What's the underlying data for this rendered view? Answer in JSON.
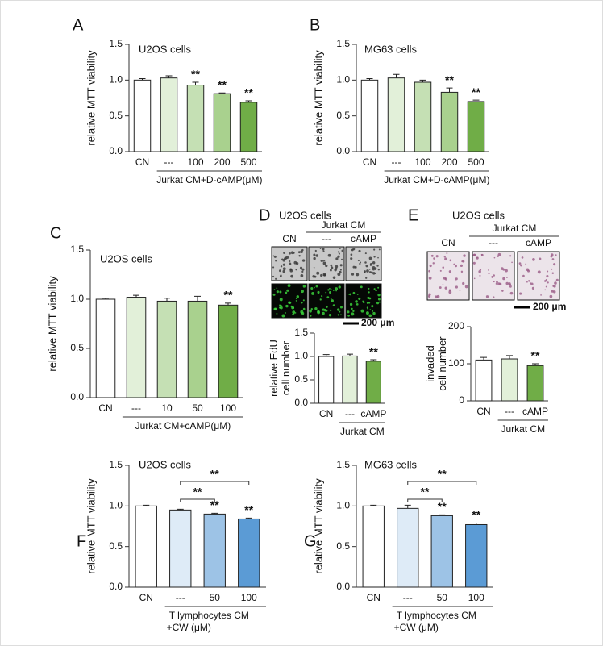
{
  "chart_data": [
    {
      "type": "bar",
      "panel": "A",
      "title": "U2OS cells",
      "y_label": [
        "relative MTT viability"
      ],
      "categories": [
        "CN",
        "---",
        "100",
        "200",
        "500"
      ],
      "values": [
        1.0,
        1.03,
        0.93,
        0.81,
        0.69
      ],
      "errors": [
        0.02,
        0.03,
        0.04,
        0.01,
        0.02
      ],
      "colors": [
        "#ffffff",
        "#e2f0d9",
        "#c5e0b4",
        "#a9d18e",
        "#70ad47"
      ],
      "significance": [
        null,
        null,
        "**",
        "**",
        "**"
      ],
      "group_label": [
        "Jurkat CM+D-cAMP(μM)"
      ],
      "ylim": [
        0,
        1.5
      ],
      "yticks": [
        {
          "value": 0,
          "label": "0.0"
        },
        {
          "value": 0.5,
          "label": "0.5"
        },
        {
          "value": 1,
          "label": "1.0"
        },
        {
          "value": 1.5,
          "label": "1.5"
        }
      ]
    },
    {
      "type": "bar",
      "panel": "B",
      "title": "MG63 cells",
      "y_label": [
        "relative MTT viability"
      ],
      "categories": [
        "CN",
        "---",
        "100",
        "200",
        "500"
      ],
      "values": [
        1.0,
        1.03,
        0.97,
        0.83,
        0.7
      ],
      "errors": [
        0.02,
        0.05,
        0.03,
        0.06,
        0.02
      ],
      "colors": [
        "#ffffff",
        "#e2f0d9",
        "#c5e0b4",
        "#a9d18e",
        "#70ad47"
      ],
      "significance": [
        null,
        null,
        null,
        "**",
        "**"
      ],
      "group_label": [
        "Jurkat CM+D-cAMP(μM)"
      ],
      "ylim": [
        0,
        1.5
      ],
      "yticks": [
        {
          "value": 0,
          "label": "0.0"
        },
        {
          "value": 0.5,
          "label": "0.5"
        },
        {
          "value": 1,
          "label": "1.0"
        },
        {
          "value": 1.5,
          "label": "1.5"
        }
      ]
    },
    {
      "type": "bar",
      "panel": "C",
      "title": "U2OS cells",
      "y_label": [
        "relative MTT viability"
      ],
      "categories": [
        "CN",
        "---",
        "10",
        "50",
        "100"
      ],
      "values": [
        1.0,
        1.02,
        0.98,
        0.98,
        0.94
      ],
      "errors": [
        0.01,
        0.02,
        0.03,
        0.05,
        0.02
      ],
      "colors": [
        "#ffffff",
        "#e2f0d9",
        "#c5e0b4",
        "#a9d18e",
        "#70ad47"
      ],
      "significance": [
        null,
        null,
        null,
        null,
        "**"
      ],
      "group_label": [
        "Jurkat CM+cAMP(μM)"
      ],
      "ylim": [
        0,
        1.5
      ],
      "yticks": [
        {
          "value": 0,
          "label": "0.0"
        },
        {
          "value": 0.5,
          "label": "0.5"
        },
        {
          "value": 1,
          "label": "1.0"
        },
        {
          "value": 1.5,
          "label": "1.5"
        }
      ]
    },
    {
      "type": "bar",
      "panel": "D",
      "title": "U2OS cells",
      "y_label": [
        "relative EdU",
        "cell number"
      ],
      "image_header": "Jurkat CM",
      "image_columns": [
        "CN",
        "---",
        "cAMP"
      ],
      "scale_bar": "200 μm",
      "categories": [
        "CN",
        "---",
        "cAMP"
      ],
      "values": [
        1.0,
        1.01,
        0.9
      ],
      "errors": [
        0.04,
        0.04,
        0.03
      ],
      "colors": [
        "#ffffff",
        "#e2f0d9",
        "#70ad47"
      ],
      "significance": [
        null,
        null,
        "**"
      ],
      "group_label": [
        "Jurkat CM"
      ],
      "ylim": [
        0,
        1.5
      ],
      "yticks": [
        {
          "value": 0,
          "label": "0.0"
        },
        {
          "value": 0.5,
          "label": "0.5"
        },
        {
          "value": 1,
          "label": "1.0"
        },
        {
          "value": 1.5,
          "label": "1.5"
        }
      ]
    },
    {
      "type": "bar",
      "panel": "E",
      "title": "U2OS cells",
      "y_label": [
        "invaded",
        "cell number"
      ],
      "image_header": "Jurkat CM",
      "image_columns": [
        "CN",
        "---",
        "cAMP"
      ],
      "scale_bar": "200 μm",
      "categories": [
        "CN",
        "---",
        "cAMP"
      ],
      "values": [
        110,
        113,
        95
      ],
      "errors": [
        7,
        9,
        5
      ],
      "colors": [
        "#ffffff",
        "#e2f0d9",
        "#70ad47"
      ],
      "significance": [
        null,
        null,
        "**"
      ],
      "group_label": [
        "Jurkat CM"
      ],
      "ylim": [
        0,
        200
      ],
      "yticks": [
        0,
        100,
        200
      ]
    },
    {
      "type": "bar",
      "panel": "F",
      "title": "U2OS cells",
      "y_label": [
        "relative MTT viability"
      ],
      "categories": [
        "CN",
        "---",
        "50",
        "100"
      ],
      "values": [
        1.0,
        0.95,
        0.9,
        0.84
      ],
      "errors": [
        0.01,
        0.01,
        0.01,
        0.01
      ],
      "colors": [
        "#ffffff",
        "#deebf7",
        "#9dc3e6",
        "#5b9bd5"
      ],
      "significance": [
        null,
        null,
        "**",
        "**"
      ],
      "brackets": [
        {
          "between": [
            "---",
            "50"
          ],
          "label": "**"
        },
        {
          "between": [
            "---",
            "100"
          ],
          "label": "**"
        }
      ],
      "group_label": [
        "T lymphocytes CM",
        "+CW (μM)"
      ],
      "ylim": [
        0,
        1.5
      ],
      "yticks": [
        {
          "value": 0,
          "label": "0.0"
        },
        {
          "value": 0.5,
          "label": "0.5"
        },
        {
          "value": 1,
          "label": "1.0"
        },
        {
          "value": 1.5,
          "label": "1.5"
        }
      ]
    },
    {
      "type": "bar",
      "panel": "G",
      "title": "MG63 cells",
      "y_label": [
        "relative MTT viability"
      ],
      "categories": [
        "CN",
        "---",
        "50",
        "100"
      ],
      "values": [
        1.0,
        0.97,
        0.88,
        0.77
      ],
      "errors": [
        0.01,
        0.04,
        0.01,
        0.02
      ],
      "colors": [
        "#ffffff",
        "#deebf7",
        "#9dc3e6",
        "#5b9bd5"
      ],
      "significance": [
        null,
        null,
        "**",
        "**"
      ],
      "brackets": [
        {
          "between": [
            "---",
            "50"
          ],
          "label": "**"
        },
        {
          "between": [
            "---",
            "100"
          ],
          "label": "**"
        }
      ],
      "group_label": [
        "T lymphocytes CM",
        "+CW (μM)"
      ],
      "ylim": [
        0,
        1.5
      ],
      "yticks": [
        {
          "value": 0,
          "label": "0.0"
        },
        {
          "value": 0.5,
          "label": "0.5"
        },
        {
          "value": 1,
          "label": "1.0"
        },
        {
          "value": 1.5,
          "label": "1.5"
        }
      ]
    }
  ]
}
